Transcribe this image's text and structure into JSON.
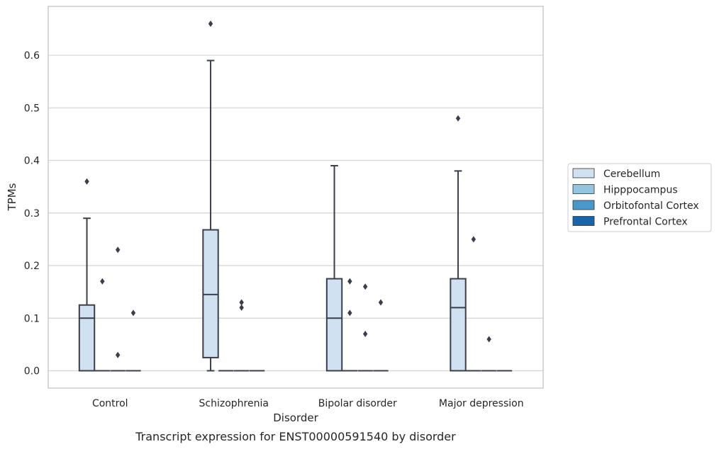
{
  "chart_data": {
    "type": "box",
    "title": "",
    "caption": "Transcript expression for ENST00000591540 by disorder",
    "xlabel": "Disorder",
    "ylabel": "TPMs",
    "ylim": [
      -0.033,
      0.693
    ],
    "yticks": [
      0.0,
      0.1,
      0.2,
      0.3,
      0.4,
      0.5,
      0.6
    ],
    "ytick_labels": [
      "0.0",
      "0.1",
      "0.2",
      "0.3",
      "0.4",
      "0.5",
      "0.6"
    ],
    "grid": "horizontal",
    "legend_position": "right",
    "categories": [
      "Control",
      "Schizophrenia",
      "Bipolar disorder",
      "Major depression"
    ],
    "series": [
      {
        "name": "Cerebellum",
        "color": "#d0e1f2",
        "boxes": [
          {
            "q1": 0.0,
            "median": 0.1,
            "q3": 0.125,
            "whisker_low": 0.0,
            "whisker_high": 0.29,
            "outliers": [
              0.36
            ]
          },
          {
            "q1": 0.025,
            "median": 0.145,
            "q3": 0.268,
            "whisker_low": 0.0,
            "whisker_high": 0.59,
            "outliers": [
              0.66
            ]
          },
          {
            "q1": 0.0,
            "median": 0.1,
            "q3": 0.175,
            "whisker_low": 0.0,
            "whisker_high": 0.39,
            "outliers": []
          },
          {
            "q1": 0.0,
            "median": 0.12,
            "q3": 0.175,
            "whisker_low": 0.0,
            "whisker_high": 0.38,
            "outliers": [
              0.48
            ]
          }
        ]
      },
      {
        "name": "Hipppocampus",
        "color": "#94c4df",
        "boxes": [
          {
            "q1": 0.0,
            "median": 0.0,
            "q3": 0.0,
            "whisker_low": 0.0,
            "whisker_high": 0.0,
            "outliers": [
              0.17
            ]
          },
          {
            "q1": 0.0,
            "median": 0.0,
            "q3": 0.0,
            "whisker_low": 0.0,
            "whisker_high": 0.0,
            "outliers": []
          },
          {
            "q1": 0.0,
            "median": 0.0,
            "q3": 0.0,
            "whisker_low": 0.0,
            "whisker_high": 0.0,
            "outliers": [
              0.11,
              0.17
            ]
          },
          {
            "q1": 0.0,
            "median": 0.0,
            "q3": 0.0,
            "whisker_low": 0.0,
            "whisker_high": 0.0,
            "outliers": [
              0.25
            ]
          }
        ]
      },
      {
        "name": "Orbitofontal Cortex",
        "color": "#4a98c9",
        "boxes": [
          {
            "q1": 0.0,
            "median": 0.0,
            "q3": 0.0,
            "whisker_low": 0.0,
            "whisker_high": 0.0,
            "outliers": [
              0.03,
              0.23
            ]
          },
          {
            "q1": 0.0,
            "median": 0.0,
            "q3": 0.0,
            "whisker_low": 0.0,
            "whisker_high": 0.0,
            "outliers": [
              0.12,
              0.13
            ]
          },
          {
            "q1": 0.0,
            "median": 0.0,
            "q3": 0.0,
            "whisker_low": 0.0,
            "whisker_high": 0.0,
            "outliers": [
              0.07,
              0.16
            ]
          },
          {
            "q1": 0.0,
            "median": 0.0,
            "q3": 0.0,
            "whisker_low": 0.0,
            "whisker_high": 0.0,
            "outliers": [
              0.06
            ]
          }
        ]
      },
      {
        "name": "Prefrontal Cortex",
        "color": "#1764ab",
        "boxes": [
          {
            "q1": 0.0,
            "median": 0.0,
            "q3": 0.0,
            "whisker_low": 0.0,
            "whisker_high": 0.0,
            "outliers": [
              0.11
            ]
          },
          {
            "q1": 0.0,
            "median": 0.0,
            "q3": 0.0,
            "whisker_low": 0.0,
            "whisker_high": 0.0,
            "outliers": []
          },
          {
            "q1": 0.0,
            "median": 0.0,
            "q3": 0.0,
            "whisker_low": 0.0,
            "whisker_high": 0.0,
            "outliers": [
              0.13
            ]
          },
          {
            "q1": 0.0,
            "median": 0.0,
            "q3": 0.0,
            "whisker_low": 0.0,
            "whisker_high": 0.0,
            "outliers": []
          }
        ]
      }
    ]
  }
}
